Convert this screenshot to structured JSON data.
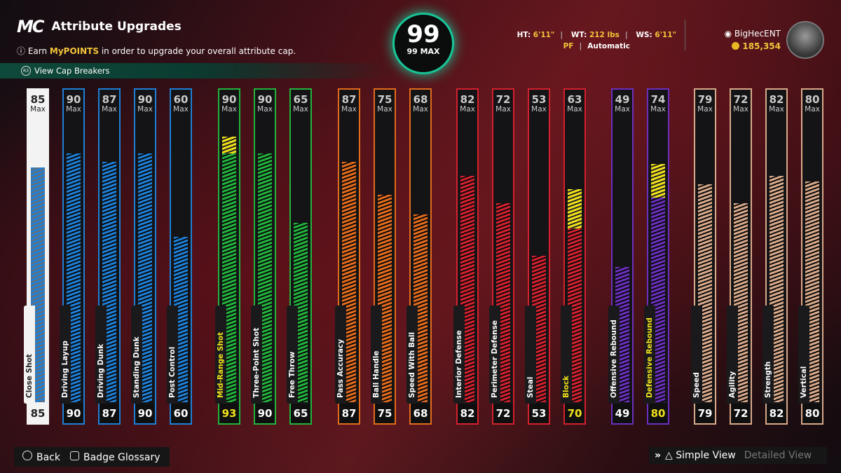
{
  "header": {
    "logo": "MC",
    "title": "Attribute Upgrades",
    "subtitle_pre": "Earn ",
    "subtitle_hl": "MyPOINTS",
    "subtitle_post": " in order to upgrade your overall attribute cap.",
    "cap_breakers": "View Cap Breakers"
  },
  "overall": {
    "value": "99",
    "label": "99 MAX"
  },
  "player": {
    "ht_label": "HT:",
    "ht": "6'11\"",
    "wt_label": "WT:",
    "wt": "212 lbs",
    "ws_label": "WS:",
    "ws": "6'11\"",
    "position": "PF",
    "mode": "Automatic"
  },
  "profile": {
    "name": "BigHecENT",
    "coins": "185,354"
  },
  "colors": {
    "inside": "#1e7fd6",
    "mid": "#23b33d",
    "play": "#e36b1d",
    "def": "#d4202e",
    "reb": "#6b2fbf",
    "phys": "#d9a98a",
    "over": "#f2e21a"
  },
  "attributes": [
    {
      "name": "Close Shot",
      "value": "85",
      "max": "85",
      "cap": "Max",
      "group": "inside",
      "progress": 0.85
    },
    {
      "name": "Driving Layup",
      "value": "90",
      "max": "90",
      "cap": "Max",
      "group": "inside",
      "progress": 0.9
    },
    {
      "name": "Driving Dunk",
      "value": "87",
      "max": "87",
      "cap": "Max",
      "group": "inside",
      "progress": 0.87
    },
    {
      "name": "Standing Dunk",
      "value": "90",
      "max": "90",
      "cap": "Max",
      "group": "inside",
      "progress": 0.9
    },
    {
      "name": "Post Control",
      "value": "60",
      "max": "60",
      "cap": "Max",
      "group": "inside",
      "progress": 0.6
    },
    {
      "name": "Mid-Range Shot",
      "value": "93",
      "max": "90",
      "cap": "Max",
      "group": "mid",
      "progress": 0.9,
      "boost": 0.93
    },
    {
      "name": "Three-Point Shot",
      "value": "90",
      "max": "90",
      "cap": "Max",
      "group": "mid",
      "progress": 0.9
    },
    {
      "name": "Free Throw",
      "value": "65",
      "max": "65",
      "cap": "Max",
      "group": "mid",
      "progress": 0.65
    },
    {
      "name": "Pass Accuracy",
      "value": "87",
      "max": "87",
      "cap": "Max",
      "group": "play",
      "progress": 0.87
    },
    {
      "name": "Ball Handle",
      "value": "75",
      "max": "75",
      "cap": "Max",
      "group": "play",
      "progress": 0.75
    },
    {
      "name": "Speed With Ball",
      "value": "68",
      "max": "68",
      "cap": "Max",
      "group": "play",
      "progress": 0.68
    },
    {
      "name": "Interior Defense",
      "value": "82",
      "max": "82",
      "cap": "Max",
      "group": "def",
      "progress": 0.82
    },
    {
      "name": "Perimeter Defense",
      "value": "72",
      "max": "72",
      "cap": "Max",
      "group": "def",
      "progress": 0.72
    },
    {
      "name": "Steal",
      "value": "53",
      "max": "53",
      "cap": "Max",
      "group": "def",
      "progress": 0.53
    },
    {
      "name": "Block",
      "value": "70",
      "max": "63",
      "cap": "Max",
      "group": "def",
      "progress": 0.63,
      "boost": 0.7
    },
    {
      "name": "Offensive Rebound",
      "value": "49",
      "max": "49",
      "cap": "Max",
      "group": "reb",
      "progress": 0.49
    },
    {
      "name": "Defensive Rebound",
      "value": "80",
      "max": "74",
      "cap": "Max",
      "group": "reb",
      "progress": 0.74,
      "boost": 0.8
    },
    {
      "name": "Speed",
      "value": "79",
      "max": "79",
      "cap": "Max",
      "group": "phys",
      "progress": 0.79
    },
    {
      "name": "Agility",
      "value": "72",
      "max": "72",
      "cap": "Max",
      "group": "phys",
      "progress": 0.72
    },
    {
      "name": "Strength",
      "value": "82",
      "max": "82",
      "cap": "Max",
      "group": "phys",
      "progress": 0.82
    },
    {
      "name": "Vertical",
      "value": "80",
      "max": "80",
      "cap": "Max",
      "group": "phys",
      "progress": 0.8
    }
  ],
  "footer": {
    "back": "Back",
    "glossary": "Badge Glossary",
    "simple": "Simple View",
    "detailed": "Detailed View"
  }
}
